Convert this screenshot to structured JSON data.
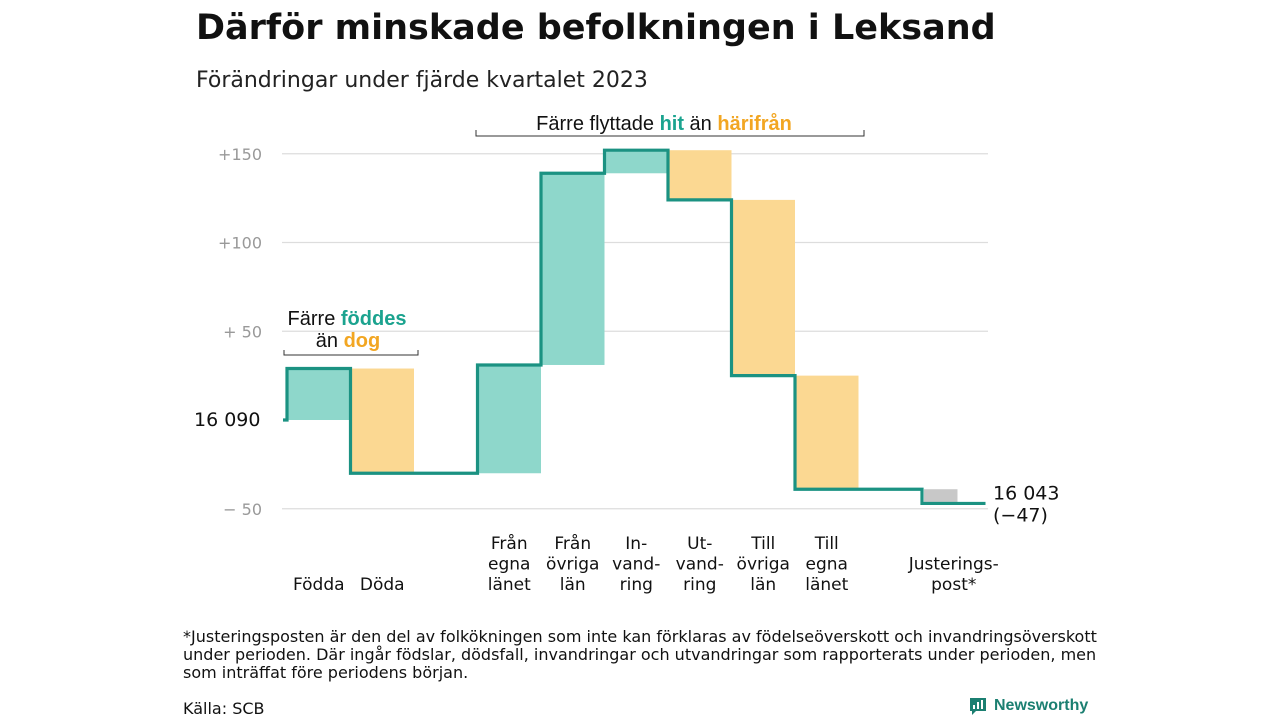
{
  "title": "Därför minskade befolkningen i Leksand",
  "subtitle": "Förändringar under fjärde kvartalet 2023",
  "footnote": "*Justeringsposten är den del av folkökningen som inte kan förklaras av födelseöverskott och invandringsöverskott under perioden. Där ingår födslar, dödsfall, invandringar och utvandringar som rapporterats under perioden, men som inträffat före periodens början.",
  "source": "Källa: SCB",
  "brand": "Newsworthy",
  "colors": {
    "increase": "#8ed7cb",
    "decrease": "#fbd892",
    "adjustment": "#c8c8c8",
    "line": "#1b9282",
    "hit_text": "#1ba38f",
    "harifran_text": "#f2a622",
    "axis_text": "#999999",
    "grid": "#dddddd"
  },
  "chart_data": {
    "type": "waterfall",
    "start_label": "16  090",
    "end_value_label": "16 043",
    "end_change_label": "(−47)",
    "ylim": [
      -50,
      160
    ],
    "yticks": [
      {
        "value": 150,
        "label": "+150"
      },
      {
        "value": 100,
        "label": "+100"
      },
      {
        "value": 50,
        "label": "+  50"
      },
      {
        "value": -50,
        "label": "−  50"
      }
    ],
    "steps": [
      {
        "label": [
          "Födda"
        ],
        "from": 0,
        "to": 29,
        "kind": "increase"
      },
      {
        "label": [
          "Döda"
        ],
        "from": 29,
        "to": -30,
        "kind": "decrease"
      },
      {
        "label": [],
        "from": -30,
        "to": -30,
        "kind": "gap"
      },
      {
        "label": [
          "Från",
          "egna",
          "länet"
        ],
        "from": -30,
        "to": 31,
        "kind": "increase"
      },
      {
        "label": [
          "Från",
          "övriga",
          "län"
        ],
        "from": 31,
        "to": 139,
        "kind": "increase"
      },
      {
        "label": [
          "In-",
          "vand-",
          "ring"
        ],
        "from": 139,
        "to": 152,
        "kind": "increase"
      },
      {
        "label": [
          "Ut-",
          "vand-",
          "ring"
        ],
        "from": 152,
        "to": 124,
        "kind": "decrease"
      },
      {
        "label": [
          "Till",
          "övriga",
          "län"
        ],
        "from": 124,
        "to": 25,
        "kind": "decrease"
      },
      {
        "label": [
          "Till",
          "egna",
          "länet"
        ],
        "from": 25,
        "to": -39,
        "kind": "decrease"
      },
      {
        "label": [],
        "from": -39,
        "to": -39,
        "kind": "gap"
      },
      {
        "label": [
          "Justerings-",
          "post*"
        ],
        "from": -39,
        "to": -47,
        "kind": "adjustment"
      }
    ],
    "annotations": {
      "births": {
        "parts": [
          "Färre ",
          "föddes",
          "än ",
          "dog"
        ]
      },
      "migration": {
        "parts": [
          "Färre flyttade ",
          "hit",
          " än ",
          "härifrån"
        ]
      }
    }
  }
}
